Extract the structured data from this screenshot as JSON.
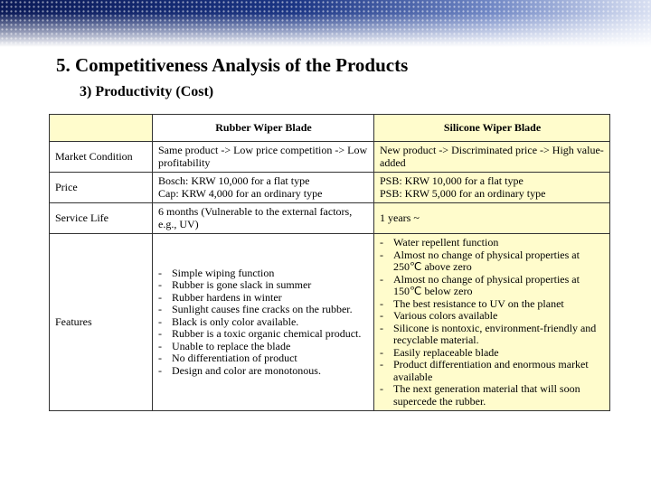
{
  "slide": {
    "title": "5. Competitiveness Analysis of the Products",
    "subtitle": "3) Productivity (Cost)"
  },
  "table": {
    "header": {
      "label_col": "",
      "rubber": "Rubber Wiper Blade",
      "silicone": "Silicone Wiper Blade"
    },
    "rows": [
      {
        "label": "Market Condition",
        "rubber": "Same product -> Low price competition -> Low profitability",
        "silicone": "New product -> Discriminated price -> High value-added"
      },
      {
        "label": "Price",
        "rubber": "Bosch: KRW 10,000 for a flat type\nCap: KRW 4,000 for an ordinary type",
        "silicone": "PSB: KRW 10,000 for a flat type\nPSB: KRW 5,000 for an ordinary type"
      },
      {
        "label": "Service Life",
        "rubber": "6 months (Vulnerable to the external factors, e.g., UV)",
        "silicone": "1 years ~"
      }
    ],
    "features": {
      "label": "Features",
      "rubber": [
        "Simple wiping function",
        "Rubber is gone slack in summer",
        "Rubber hardens in winter",
        "Sunlight causes fine cracks on the rubber.",
        "Black is only color available.",
        "Rubber is a toxic organic chemical product.",
        "Unable to replace the blade",
        "No differentiation of product",
        "Design and color are monotonous."
      ],
      "silicone": [
        "Water repellent function",
        "Almost no change of physical properties at 250℃ above zero",
        "Almost no change of physical properties at 150℃ below zero",
        "The best resistance to UV on the planet",
        "Various colors available",
        "Silicone is nontoxic, environment-friendly and recyclable material.",
        "Easily replaceable blade",
        "Product differentiation and enormous market available",
        "The next generation material that will soon supercede the rubber."
      ]
    }
  },
  "colors": {
    "band_dark": "#0b1a57",
    "band_light": "#6f86c4",
    "cell_highlight": "#fffccc"
  }
}
